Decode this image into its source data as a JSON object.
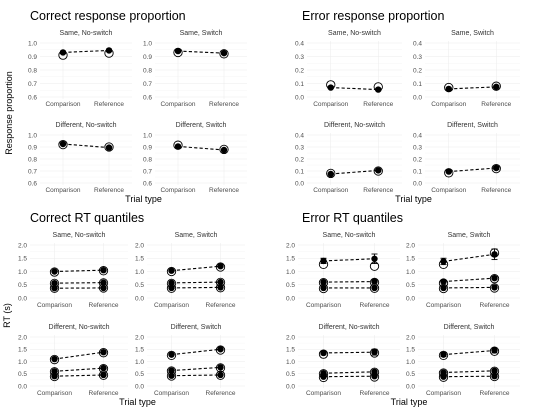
{
  "chart_data": [
    {
      "type": "scatter",
      "title": "Correct response proportion",
      "xlabel": "Trial type",
      "ylabel": "Response proportion",
      "categories": [
        "Comparison",
        "Reference"
      ],
      "ylim": [
        0.6,
        1.0
      ],
      "yticks": [
        "0.6",
        "0.7",
        "0.8",
        "0.9",
        "1.0"
      ],
      "legend": "none",
      "facets": [
        {
          "strip": "Same, No-switch",
          "series": [
            {
              "observed": [
                0.93,
                0.945
              ],
              "predicted": [
                0.91,
                0.925
              ],
              "error": [
                0.008,
                0.008
              ]
            }
          ]
        },
        {
          "strip": "Same, Switch",
          "series": [
            {
              "observed": [
                0.94,
                0.925
              ],
              "predicted": [
                0.93,
                0.92
              ],
              "error": [
                0.008,
                0.008
              ]
            }
          ]
        },
        {
          "strip": "Different, No-switch",
          "series": [
            {
              "observed": [
                0.925,
                0.895
              ],
              "predicted": [
                0.92,
                0.9
              ],
              "error": [
                0.008,
                0.008
              ]
            }
          ]
        },
        {
          "strip": "Different, Switch",
          "series": [
            {
              "observed": [
                0.905,
                0.875
              ],
              "predicted": [
                0.915,
                0.88
              ],
              "error": [
                0.008,
                0.008
              ]
            }
          ]
        }
      ]
    },
    {
      "type": "scatter",
      "title": "Error response proportion",
      "xlabel": "Trial type",
      "ylabel": "",
      "categories": [
        "Comparison",
        "Reference"
      ],
      "ylim": [
        0.0,
        0.4
      ],
      "yticks": [
        "0.0",
        "0.1",
        "0.2",
        "0.3",
        "0.4"
      ],
      "legend": "none",
      "facets": [
        {
          "strip": "Same, No-switch",
          "series": [
            {
              "observed": [
                0.07,
                0.055
              ],
              "predicted": [
                0.09,
                0.075
              ],
              "error": [
                0.008,
                0.008
              ]
            }
          ]
        },
        {
          "strip": "Same, Switch",
          "series": [
            {
              "observed": [
                0.06,
                0.075
              ],
              "predicted": [
                0.07,
                0.08
              ],
              "error": [
                0.008,
                0.008
              ]
            }
          ]
        },
        {
          "strip": "Different, No-switch",
          "series": [
            {
              "observed": [
                0.075,
                0.105
              ],
              "predicted": [
                0.08,
                0.1
              ],
              "error": [
                0.008,
                0.008
              ]
            }
          ]
        },
        {
          "strip": "Different, Switch",
          "series": [
            {
              "observed": [
                0.095,
                0.125
              ],
              "predicted": [
                0.085,
                0.12
              ],
              "error": [
                0.008,
                0.012
              ]
            }
          ]
        }
      ]
    },
    {
      "type": "scatter",
      "title": "Correct RT quantiles",
      "xlabel": "Trial type",
      "ylabel": "RT (s)",
      "categories": [
        "Comparison",
        "Reference"
      ],
      "ylim": [
        0.0,
        2.0
      ],
      "yticks": [
        "0.0",
        "0.5",
        "1.0",
        "1.5",
        "2.0"
      ],
      "legend": "none",
      "facets": [
        {
          "strip": "Same, No-switch",
          "series": [
            {
              "observed": [
                1.0,
                1.05
              ],
              "predicted": [
                0.98,
                1.03
              ],
              "error": [
                0.03,
                0.03
              ]
            },
            {
              "observed": [
                0.56,
                0.58
              ],
              "predicted": [
                0.55,
                0.57
              ],
              "error": [
                0.02,
                0.02
              ]
            },
            {
              "observed": [
                0.37,
                0.38
              ],
              "predicted": [
                0.37,
                0.38
              ],
              "error": [
                0.02,
                0.02
              ]
            }
          ]
        },
        {
          "strip": "Same, Switch",
          "series": [
            {
              "observed": [
                1.03,
                1.2
              ],
              "predicted": [
                1.0,
                1.17
              ],
              "error": [
                0.03,
                0.04
              ]
            },
            {
              "observed": [
                0.57,
                0.6
              ],
              "predicted": [
                0.55,
                0.59
              ],
              "error": [
                0.02,
                0.02
              ]
            },
            {
              "observed": [
                0.38,
                0.4
              ],
              "predicted": [
                0.37,
                0.39
              ],
              "error": [
                0.02,
                0.02
              ]
            }
          ]
        },
        {
          "strip": "Different, No-switch",
          "series": [
            {
              "observed": [
                1.1,
                1.38
              ],
              "predicted": [
                1.08,
                1.36
              ],
              "error": [
                0.03,
                0.04
              ]
            },
            {
              "observed": [
                0.6,
                0.73
              ],
              "predicted": [
                0.58,
                0.71
              ],
              "error": [
                0.02,
                0.02
              ]
            },
            {
              "observed": [
                0.4,
                0.45
              ],
              "predicted": [
                0.39,
                0.44
              ],
              "error": [
                0.02,
                0.02
              ]
            }
          ]
        },
        {
          "strip": "Different, Switch",
          "series": [
            {
              "observed": [
                1.28,
                1.5
              ],
              "predicted": [
                1.25,
                1.47
              ],
              "error": [
                0.03,
                0.04
              ]
            },
            {
              "observed": [
                0.63,
                0.76
              ],
              "predicted": [
                0.61,
                0.74
              ],
              "error": [
                0.02,
                0.02
              ]
            },
            {
              "observed": [
                0.42,
                0.45
              ],
              "predicted": [
                0.41,
                0.44
              ],
              "error": [
                0.02,
                0.02
              ]
            }
          ]
        }
      ]
    },
    {
      "type": "scatter",
      "title": "Error RT quantiles",
      "xlabel": "Trial type",
      "ylabel": "",
      "categories": [
        "Comparison",
        "Reference"
      ],
      "ylim": [
        0.0,
        2.0
      ],
      "yticks": [
        "0.0",
        "0.5",
        "1.0",
        "1.5",
        "2.0"
      ],
      "legend": "none",
      "facets": [
        {
          "strip": "Same, No-switch",
          "series": [
            {
              "observed": [
                1.4,
                1.48
              ],
              "predicted": [
                1.27,
                1.2
              ],
              "error": [
                0.1,
                0.18
              ]
            },
            {
              "observed": [
                0.6,
                0.62
              ],
              "predicted": [
                0.58,
                0.59
              ],
              "error": [
                0.04,
                0.05
              ]
            },
            {
              "observed": [
                0.38,
                0.38
              ],
              "predicted": [
                0.36,
                0.37
              ],
              "error": [
                0.02,
                0.03
              ]
            }
          ]
        },
        {
          "strip": "Same, Switch",
          "series": [
            {
              "observed": [
                1.38,
                1.65
              ],
              "predicted": [
                1.27,
                1.7
              ],
              "error": [
                0.12,
                0.2
              ]
            },
            {
              "observed": [
                0.62,
                0.75
              ],
              "predicted": [
                0.56,
                0.73
              ],
              "error": [
                0.05,
                0.06
              ]
            },
            {
              "observed": [
                0.38,
                0.4
              ],
              "predicted": [
                0.36,
                0.38
              ],
              "error": [
                0.03,
                0.03
              ]
            }
          ]
        },
        {
          "strip": "Different, No-switch",
          "series": [
            {
              "observed": [
                1.35,
                1.38
              ],
              "predicted": [
                1.3,
                1.35
              ],
              "error": [
                0.08,
                0.12
              ]
            },
            {
              "observed": [
                0.52,
                0.58
              ],
              "predicted": [
                0.5,
                0.56
              ],
              "error": [
                0.04,
                0.04
              ]
            },
            {
              "observed": [
                0.38,
                0.4
              ],
              "predicted": [
                0.35,
                0.37
              ],
              "error": [
                0.03,
                0.03
              ]
            }
          ]
        },
        {
          "strip": "Different, Switch",
          "series": [
            {
              "observed": [
                1.28,
                1.45
              ],
              "predicted": [
                1.25,
                1.42
              ],
              "error": [
                0.08,
                0.1
              ]
            },
            {
              "observed": [
                0.55,
                0.62
              ],
              "predicted": [
                0.53,
                0.6
              ],
              "error": [
                0.04,
                0.04
              ]
            },
            {
              "observed": [
                0.38,
                0.4
              ],
              "predicted": [
                0.36,
                0.39
              ],
              "error": [
                0.03,
                0.03
              ]
            }
          ]
        }
      ]
    }
  ]
}
